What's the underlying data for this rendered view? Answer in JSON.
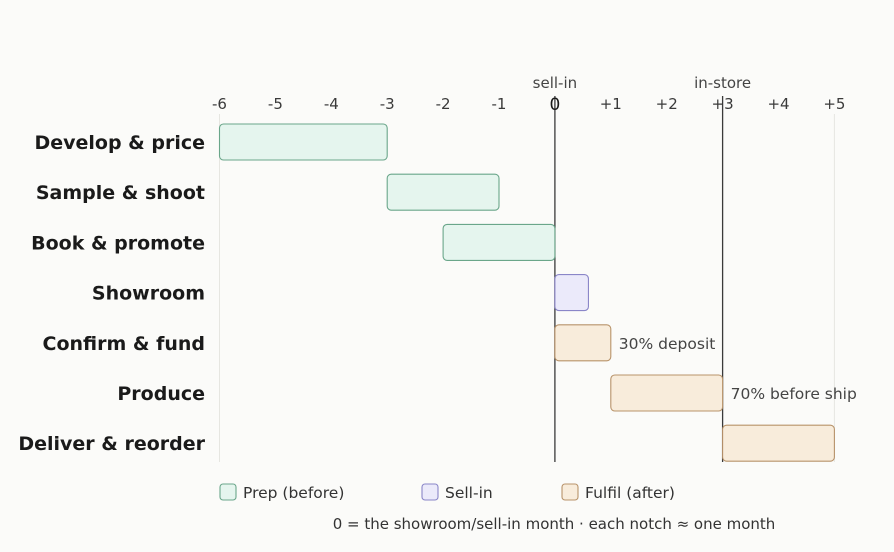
{
  "chart_data": {
    "type": "gantt",
    "x_ticks": [
      {
        "value": -6,
        "label": "-6"
      },
      {
        "value": -5,
        "label": "-5"
      },
      {
        "value": -4,
        "label": "-4"
      },
      {
        "value": -3,
        "label": "-3"
      },
      {
        "value": -2,
        "label": "-2"
      },
      {
        "value": -1,
        "label": "-1"
      },
      {
        "value": 0,
        "label": "0"
      },
      {
        "value": 1,
        "label": "+1"
      },
      {
        "value": 2,
        "label": "+2"
      },
      {
        "value": 3,
        "label": "+3"
      },
      {
        "value": 4,
        "label": "+4"
      },
      {
        "value": 5,
        "label": "+5"
      }
    ],
    "xlim": [
      -6,
      5
    ],
    "reference_lines": [
      {
        "x": 0,
        "label": "sell-in"
      },
      {
        "x": 3,
        "label": "in-store"
      }
    ],
    "tasks": [
      {
        "name": "Develop & price",
        "start": -6,
        "end": -3,
        "phase": "prep",
        "annotation": ""
      },
      {
        "name": "Sample & shoot",
        "start": -3,
        "end": -1,
        "phase": "prep",
        "annotation": ""
      },
      {
        "name": "Book & promote",
        "start": -2,
        "end": 0,
        "phase": "prep",
        "annotation": ""
      },
      {
        "name": "Showroom",
        "start": 0,
        "end": 0.6,
        "phase": "sellin",
        "annotation": ""
      },
      {
        "name": "Confirm & fund",
        "start": 0,
        "end": 1,
        "phase": "fulfil",
        "annotation": "30% deposit"
      },
      {
        "name": "Produce",
        "start": 1,
        "end": 3,
        "phase": "fulfil",
        "annotation": "70% before ship"
      },
      {
        "name": "Deliver & reorder",
        "start": 3,
        "end": 5,
        "phase": "fulfil",
        "annotation": ""
      }
    ],
    "phases": {
      "prep": {
        "label": "Prep (before)",
        "fill": "#e5f5ee",
        "stroke": "#6aa68a"
      },
      "sellin": {
        "label": "Sell-in",
        "fill": "#ebeafa",
        "stroke": "#8a86c8"
      },
      "fulfil": {
        "label": "Fulfil (after)",
        "fill": "#f8ecdb",
        "stroke": "#b8936a"
      }
    },
    "legend_order": [
      "prep",
      "sellin",
      "fulfil"
    ],
    "legend_position": "bottom",
    "footnote": "0 = the showroom/sell-in month · each notch ≈ one month",
    "grid": false
  }
}
